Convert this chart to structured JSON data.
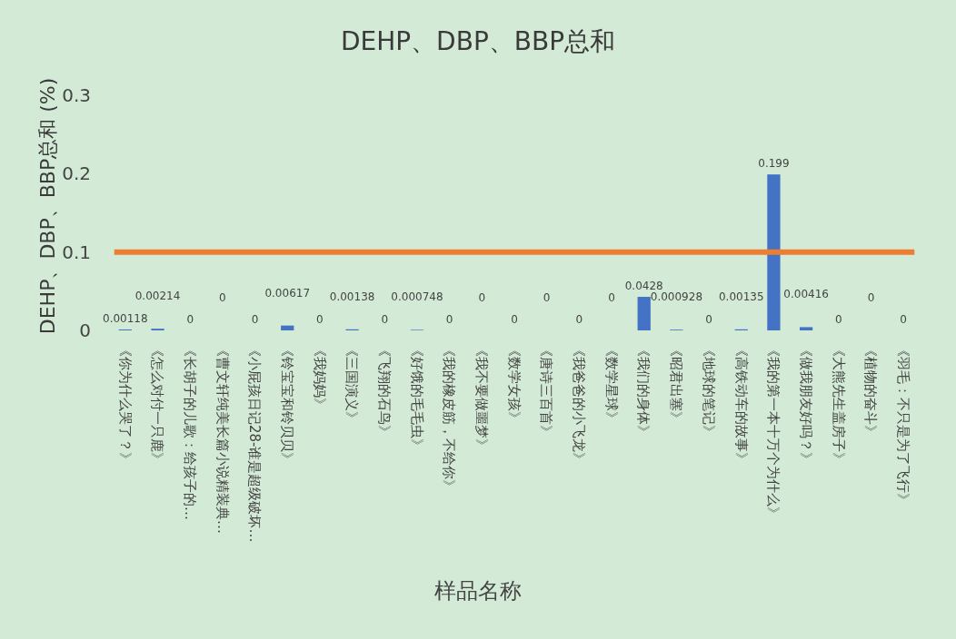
{
  "chart_data": {
    "type": "bar",
    "title": "DEHP、DBP、BBP总和",
    "xlabel": "样品名称",
    "ylabel": "DEHP、DBP、BBP总和 (%)",
    "categories": [
      "《你为什么哭了？》",
      "《怎么对付一只鹿》",
      "《长胡子的儿歌：给孩子的…",
      "《曹文轩纯美长篇小说精装典…",
      "《小屁孩日记28-谁是超级破坏…",
      "《铃宝宝和铃贝贝》",
      "《我妈妈》",
      "《三国演义》",
      "《飞翔的石鸟》",
      "《好饿的毛毛虫》",
      "《我的橡皮筋，不给你》",
      "《我不要做噩梦》",
      "《数学女孩》",
      "《唐诗三百首》",
      "《我爸爸的小飞龙》",
      "《数学星球》",
      "《我们的身体》",
      "《昭君出塞》",
      "《地球的笔记》",
      "《高铁动车的故事》",
      "《我的第一本十万个为什么》",
      "《做我朋友好吗？》",
      "《大熊先生盖房子》",
      "《植物的奋斗》",
      "《羽毛：不只是为了飞行》"
    ],
    "values": [
      0.00118,
      0.00214,
      0,
      0,
      0,
      0.00617,
      0,
      0.00138,
      0,
      0.000748,
      0,
      0,
      0,
      0,
      0,
      0,
      0.0428,
      0.000928,
      0,
      0.00135,
      0.199,
      0.00416,
      0,
      0,
      0
    ],
    "color": "#4472c4",
    "ylim": [
      0,
      0.3
    ],
    "yticks": [
      0,
      0.1,
      0.2,
      0.3
    ],
    "grid": false,
    "data_labels": true,
    "ref_lines": [
      {
        "axis": "y",
        "value": 0.1,
        "color": "#ed7d31"
      }
    ]
  }
}
